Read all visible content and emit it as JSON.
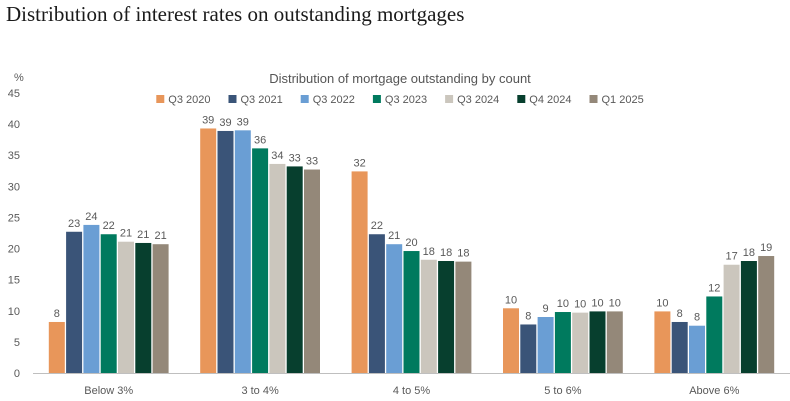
{
  "page_title": "Distribution of interest rates on outstanding mortgages",
  "chart_data": {
    "type": "bar",
    "title": "Distribution of mortgage outstanding by count",
    "ylabel": "%",
    "xlabel": "",
    "ylim": [
      0,
      45
    ],
    "yticks": [
      "0",
      "5",
      "10",
      "15",
      "20",
      "25",
      "30",
      "35",
      "40",
      "45"
    ],
    "grid": false,
    "legend_position": "top",
    "categories": [
      "Below 3%",
      "3 to 4%",
      "4 to 5%",
      "5 to 6%",
      "Above 6%"
    ],
    "series": [
      {
        "name": "Q3 2020",
        "color": "#E8965A",
        "values": [
          8.2,
          39.3,
          32.4,
          10.4,
          9.9
        ],
        "labels": [
          "8",
          "39",
          "32",
          "10",
          "10"
        ]
      },
      {
        "name": "Q3 2021",
        "color": "#3A5478",
        "values": [
          22.7,
          38.9,
          22.3,
          7.8,
          8.2
        ],
        "labels": [
          "23",
          "39",
          "22",
          "8",
          "8"
        ]
      },
      {
        "name": "Q3 2022",
        "color": "#6A9ED4",
        "values": [
          23.8,
          39.0,
          20.7,
          9.0,
          7.6
        ],
        "labels": [
          "24",
          "39",
          "21",
          "9",
          "8"
        ]
      },
      {
        "name": "Q3 2023",
        "color": "#007A5E",
        "values": [
          22.3,
          36.1,
          19.6,
          9.8,
          12.3
        ],
        "labels": [
          "22",
          "36",
          "20",
          "10",
          "12"
        ]
      },
      {
        "name": "Q3 2024",
        "color": "#CBC6BD",
        "values": [
          21.1,
          33.6,
          18.2,
          9.7,
          17.4
        ],
        "labels": [
          "21",
          "34",
          "18",
          "10",
          "17"
        ]
      },
      {
        "name": "Q4 2024",
        "color": "#073F2E",
        "values": [
          20.9,
          33.2,
          18.0,
          9.9,
          18.0
        ],
        "labels": [
          "21",
          "33",
          "18",
          "10",
          "18"
        ]
      },
      {
        "name": "Q1 2025",
        "color": "#948879",
        "values": [
          20.7,
          32.7,
          17.9,
          9.9,
          18.8
        ],
        "labels": [
          "21",
          "33",
          "18",
          "10",
          "19"
        ]
      }
    ]
  }
}
